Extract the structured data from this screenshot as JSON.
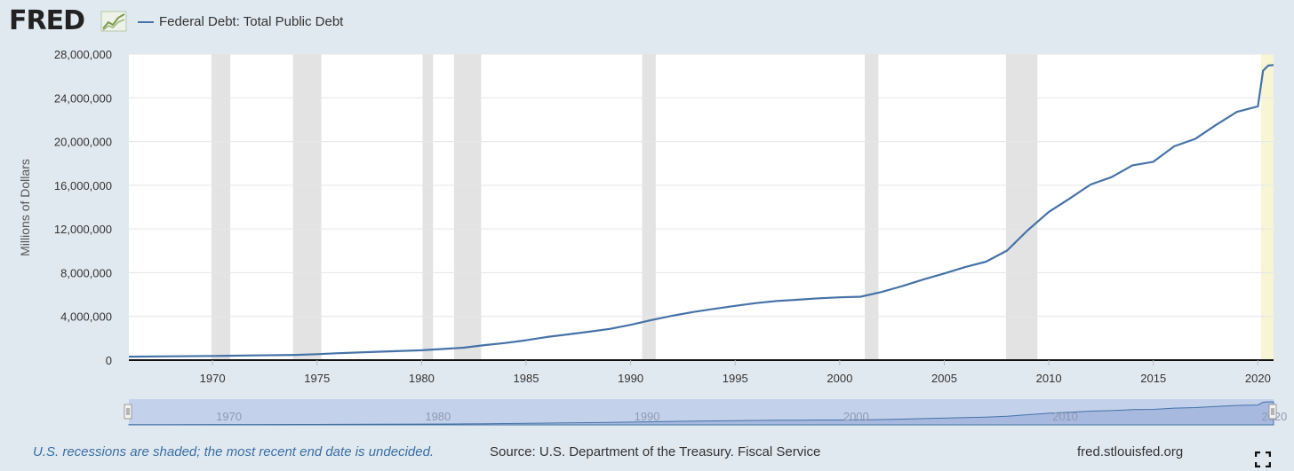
{
  "header": {
    "logo_text": "FRED",
    "logo_icon": "line-chart-icon",
    "legend_label": "Federal Debt: Total Public Debt"
  },
  "footer": {
    "recession_note": "U.S. recessions are shaded; the most recent end date is undecided.",
    "source": "Source: U.S. Department of the Treasury. Fiscal Service",
    "url": "fred.stlouisfed.org",
    "fullscreen_icon": "fullscreen-icon"
  },
  "colors": {
    "line": "#4572a7",
    "recession": "#e3e3e3",
    "undecided_recession": "#f7f5d4",
    "navigator_fill": "#bccbe8",
    "background": "#e1e9f0"
  },
  "chart_data": {
    "type": "line",
    "ylabel": "Millions of Dollars",
    "xlabel": "",
    "ylim": [
      0,
      28000000
    ],
    "xlim": [
      1966,
      2020.75
    ],
    "y_ticks": [
      0,
      4000000,
      8000000,
      12000000,
      16000000,
      20000000,
      24000000,
      28000000
    ],
    "y_tick_labels": [
      "0",
      "4,000,000",
      "8,000,000",
      "12,000,000",
      "16,000,000",
      "20,000,000",
      "24,000,000",
      "28,000,000"
    ],
    "x_ticks": [
      1970,
      1975,
      1980,
      1985,
      1990,
      1995,
      2000,
      2005,
      2010,
      2015,
      2020
    ],
    "x_tick_labels": [
      "1970",
      "1975",
      "1980",
      "1985",
      "1990",
      "1995",
      "2000",
      "2005",
      "2010",
      "2015",
      "2020"
    ],
    "navigator_labels": [
      "1970",
      "1980",
      "1990",
      "2000",
      "2010",
      "2020"
    ],
    "grid": true,
    "recessions": [
      [
        1969.95,
        1970.85
      ],
      [
        1973.85,
        1975.2
      ],
      [
        1980.05,
        1980.55
      ],
      [
        1981.55,
        1982.85
      ],
      [
        1990.55,
        1991.2
      ],
      [
        2001.2,
        2001.85
      ],
      [
        2007.95,
        2009.45
      ]
    ],
    "undecided_recession": [
      2020.15,
      2020.75
    ],
    "series": [
      {
        "name": "Federal Debt: Total Public Debt",
        "x": [
          1966,
          1968,
          1970,
          1972,
          1974,
          1975,
          1976,
          1978,
          1980,
          1982,
          1983,
          1984,
          1985,
          1986,
          1987,
          1988,
          1989,
          1990,
          1991,
          1992,
          1993,
          1994,
          1995,
          1996,
          1997,
          1998,
          1999,
          2000,
          2001,
          2002,
          2003,
          2004,
          2005,
          2006,
          2007,
          2008,
          2009,
          2010,
          2011,
          2012,
          2013,
          2014,
          2015,
          2016,
          2017,
          2018,
          2019,
          2020,
          2020.25,
          2020.5,
          2020.75
        ],
        "y": [
          320000,
          350000,
          380000,
          430000,
          480000,
          540000,
          630000,
          770000,
          900000,
          1140000,
          1370000,
          1570000,
          1820000,
          2120000,
          2350000,
          2600000,
          2860000,
          3230000,
          3670000,
          4070000,
          4410000,
          4690000,
          4970000,
          5220000,
          5410000,
          5530000,
          5660000,
          5750000,
          5800000,
          6230000,
          6780000,
          7380000,
          7930000,
          8510000,
          9010000,
          10020000,
          11900000,
          13560000,
          14790000,
          16070000,
          16740000,
          17820000,
          18150000,
          19570000,
          20240000,
          21520000,
          22720000,
          23220000,
          26480000,
          26950000,
          27000000
        ]
      }
    ]
  }
}
